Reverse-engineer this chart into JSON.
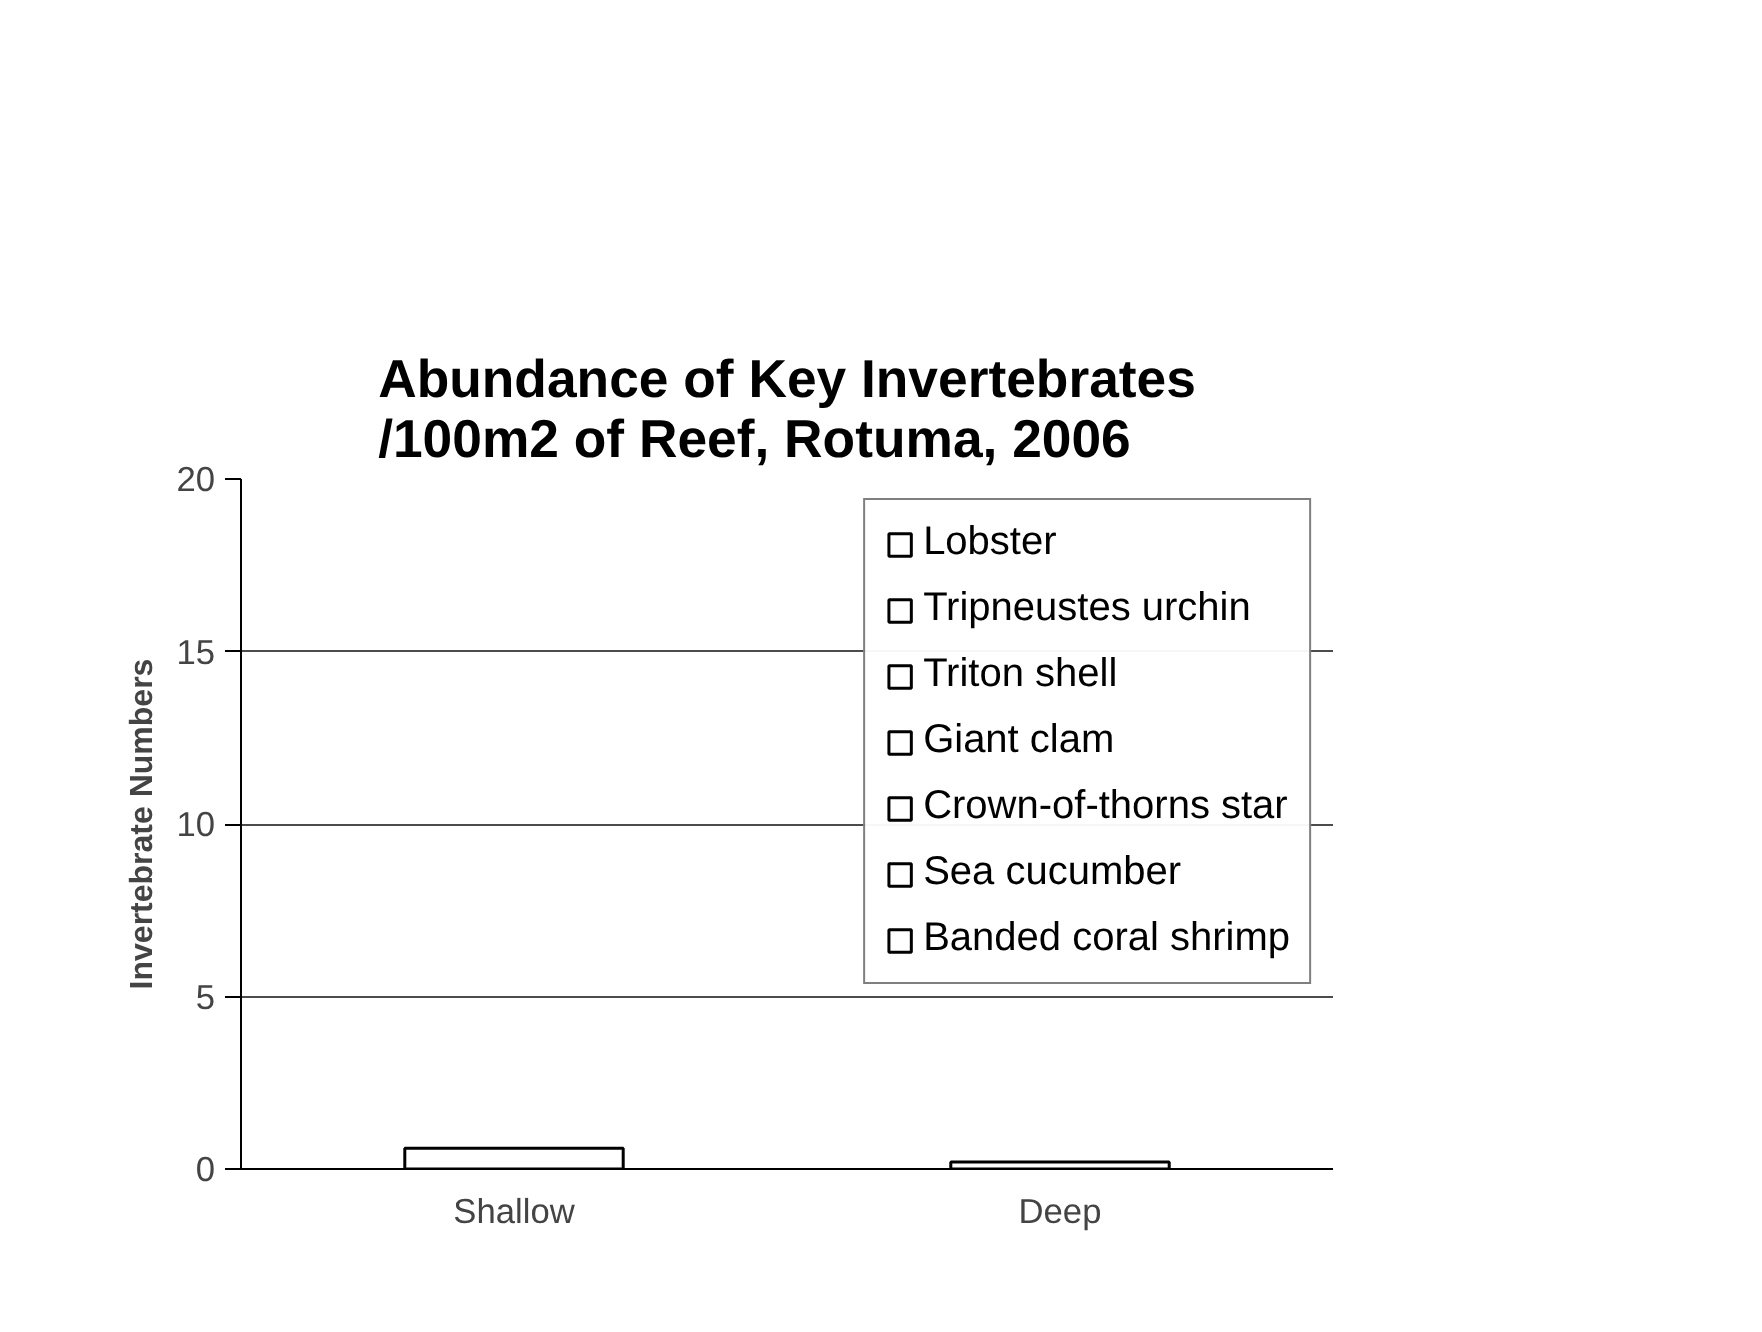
{
  "chart_data": {
    "type": "bar",
    "title": "Abundance of Key Invertebrates\n/100m2 of Reef,  Rotuma, 2006",
    "ylabel": "Invertebrate Numbers",
    "categories": [
      "Shallow",
      "Deep"
    ],
    "stacked": true,
    "series": [
      {
        "name": "Lobster",
        "color": "#ffffff",
        "values": [
          0,
          0
        ]
      },
      {
        "name": "Tripneustes urchin",
        "color": "#ffffff",
        "values": [
          0,
          0
        ]
      },
      {
        "name": "Triton shell",
        "color": "#ffffff",
        "values": [
          0,
          0
        ]
      },
      {
        "name": "Giant clam",
        "color": "#ffffff",
        "values": [
          0,
          0
        ]
      },
      {
        "name": "Crown-of-thorns star",
        "color": "#ffffff",
        "values": [
          0,
          0
        ]
      },
      {
        "name": "Sea cucumber",
        "color": "#ffffff",
        "values": [
          0.6,
          0.2
        ]
      },
      {
        "name": "Banded coral shrimp",
        "color": "#ffffff",
        "values": [
          0,
          0
        ]
      }
    ],
    "ylim": [
      0,
      20
    ],
    "yticks": [
      0,
      5,
      10,
      15,
      20
    ],
    "grid": "y",
    "legend": "top right"
  }
}
